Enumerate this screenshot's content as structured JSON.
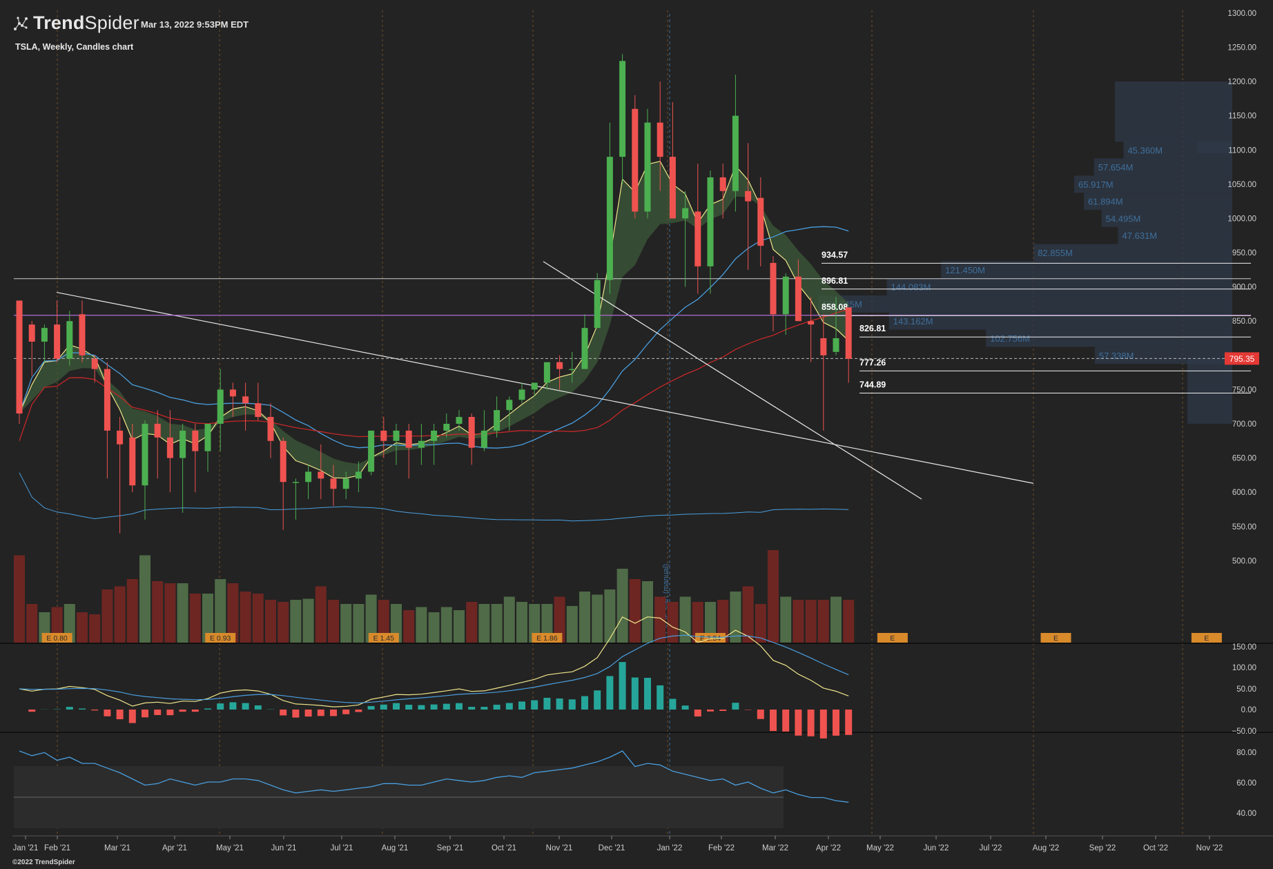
{
  "header": {
    "brand_prefix": "Trend",
    "brand_suffix": "Spider",
    "timestamp": "Mar 13, 2022 9:53PM EDT",
    "subtitle": "TSLA, Weekly, Candles chart",
    "copyright": "©2022 TrendSpider"
  },
  "colors": {
    "background": "#232323",
    "up": "#4caf50",
    "down": "#ef5350",
    "vol_up": "#4f6b47",
    "vol_down": "#6e2622",
    "ema_fast": "#f0e68c",
    "sma_blue": "#4a9fe0",
    "sma_red": "#c62828",
    "purple_line": "#b36bd4",
    "price_tag": "#e53935",
    "macd_pos": "#26a69a",
    "macd_neg": "#ef5350",
    "earnings": "#d98a2b"
  },
  "chart_data": {
    "type": "candlestick",
    "symbol": "TSLA",
    "interval": "Weekly",
    "last_price_label": "795.35",
    "x_labels": [
      "Jan '21",
      "Feb '21",
      "Mar '21",
      "Apr '21",
      "May '21",
      "Jun '21",
      "Jul '21",
      "Aug '21",
      "Sep '21",
      "Oct '21",
      "Nov '21",
      "Dec '21",
      "Jan '22",
      "Feb '22",
      "Mar '22",
      "Apr '22",
      "May '22",
      "Jun '22",
      "Jul '22",
      "Aug '22",
      "Sep '22",
      "Oct '22",
      "Nov '22"
    ],
    "y_ticks": [
      "1300.00",
      "1250.00",
      "1200.00",
      "1150.00",
      "1100.00",
      "1050.00",
      "1000.00",
      "950.00",
      "900.00",
      "850.00",
      "800.00",
      "750.00",
      "700.00",
      "650.00",
      "600.00",
      "550.00",
      "500.00"
    ],
    "ylim": [
      500,
      1300
    ],
    "candles": [
      [
        880,
        880,
        700,
        715
      ],
      [
        845,
        850,
        770,
        820
      ],
      [
        820,
        845,
        790,
        840
      ],
      [
        845,
        880,
        790,
        795
      ],
      [
        795,
        865,
        785,
        850
      ],
      [
        860,
        880,
        790,
        800
      ],
      [
        795,
        800,
        760,
        780
      ],
      [
        780,
        790,
        620,
        690
      ],
      [
        690,
        710,
        540,
        670
      ],
      [
        680,
        700,
        600,
        610
      ],
      [
        610,
        705,
        560,
        700
      ],
      [
        700,
        720,
        620,
        680
      ],
      [
        680,
        720,
        600,
        650
      ],
      [
        650,
        700,
        570,
        690
      ],
      [
        690,
        700,
        600,
        660
      ],
      [
        660,
        700,
        630,
        700
      ],
      [
        700,
        780,
        660,
        750
      ],
      [
        750,
        760,
        710,
        740
      ],
      [
        740,
        760,
        690,
        730
      ],
      [
        730,
        760,
        705,
        710
      ],
      [
        710,
        730,
        650,
        675
      ],
      [
        675,
        680,
        545,
        615
      ],
      [
        615,
        620,
        560,
        615
      ],
      [
        615,
        640,
        590,
        630
      ],
      [
        630,
        670,
        590,
        620
      ],
      [
        620,
        640,
        580,
        605
      ],
      [
        605,
        630,
        590,
        620
      ],
      [
        620,
        645,
        600,
        630
      ],
      [
        630,
        690,
        625,
        690
      ],
      [
        690,
        710,
        650,
        675
      ],
      [
        675,
        700,
        640,
        690
      ],
      [
        690,
        700,
        620,
        665
      ],
      [
        665,
        700,
        640,
        675
      ],
      [
        675,
        700,
        640,
        690
      ],
      [
        690,
        715,
        680,
        700
      ],
      [
        700,
        720,
        690,
        710
      ],
      [
        710,
        715,
        640,
        665
      ],
      [
        665,
        720,
        660,
        690
      ],
      [
        690,
        740,
        680,
        720
      ],
      [
        720,
        740,
        690,
        735
      ],
      [
        735,
        760,
        730,
        750
      ],
      [
        750,
        760,
        740,
        760
      ],
      [
        760,
        790,
        750,
        790
      ],
      [
        790,
        800,
        750,
        780
      ],
      [
        780,
        805,
        760,
        780
      ],
      [
        780,
        860,
        780,
        840
      ],
      [
        840,
        920,
        840,
        910
      ],
      [
        910,
        1140,
        890,
        1090
      ],
      [
        1090,
        1240,
        1050,
        1230
      ],
      [
        1160,
        1180,
        1000,
        1010
      ],
      [
        1010,
        1160,
        1000,
        1140
      ],
      [
        1140,
        1200,
        1040,
        1090
      ],
      [
        1090,
        1170,
        1000,
        1000
      ],
      [
        1000,
        1040,
        900,
        1015
      ],
      [
        1010,
        1080,
        890,
        930
      ],
      [
        930,
        1070,
        890,
        1060
      ],
      [
        1060,
        1080,
        1000,
        1040
      ],
      [
        1040,
        1210,
        1010,
        1150
      ],
      [
        1040,
        1110,
        925,
        1025
      ],
      [
        1030,
        1060,
        930,
        960
      ],
      [
        935,
        945,
        835,
        860
      ],
      [
        860,
        920,
        830,
        915
      ],
      [
        915,
        940,
        850,
        850
      ],
      [
        850,
        885,
        790,
        845
      ],
      [
        825,
        860,
        690,
        800
      ],
      [
        805,
        885,
        800,
        825
      ],
      [
        870,
        870,
        760,
        795
      ]
    ],
    "volume": [
      85,
      38,
      30,
      35,
      38,
      30,
      28,
      52,
      55,
      62,
      85,
      60,
      58,
      58,
      48,
      48,
      62,
      58,
      50,
      48,
      42,
      40,
      42,
      43,
      55,
      42,
      38,
      38,
      47,
      42,
      38,
      32,
      35,
      30,
      35,
      32,
      40,
      38,
      38,
      45,
      40,
      38,
      38,
      45,
      36,
      50,
      47,
      52,
      72,
      62,
      60,
      45,
      40,
      45,
      40,
      40,
      42,
      50,
      55,
      38,
      90,
      45,
      42,
      42,
      42,
      45,
      42
    ],
    "earnings": [
      {
        "label": "E 0.80",
        "week": 3
      },
      {
        "label": "E 0.93",
        "week": 16
      },
      {
        "label": "E 1.45",
        "week": 29
      },
      {
        "label": "E 1.86",
        "week": 42
      },
      {
        "label": "E 2.54",
        "week": 55
      },
      {
        "label": "E",
        "week": 69.5
      },
      {
        "label": "E",
        "week": 82.5
      },
      {
        "label": "E",
        "week": 94.5
      }
    ],
    "horizontal_levels": [
      {
        "value": "934.57",
        "price": 934.57
      },
      {
        "value": "896.81",
        "price": 896.81
      },
      {
        "value": "858.08",
        "price": 858.08
      },
      {
        "value": "826.81",
        "price": 826.81
      },
      {
        "value": "777.26",
        "price": 777.26
      },
      {
        "value": "744.89",
        "price": 744.89
      }
    ],
    "volume_profile": [
      {
        "price": 1100,
        "label": "45.360M"
      },
      {
        "price": 1075,
        "label": "57.654M"
      },
      {
        "price": 1050,
        "label": "65.917M"
      },
      {
        "price": 1025,
        "label": "61.894M"
      },
      {
        "price": 1000,
        "label": "54.495M"
      },
      {
        "price": 975,
        "label": "47.631M"
      },
      {
        "price": 950,
        "label": "82.855M"
      },
      {
        "price": 925,
        "label": "121.450M"
      },
      {
        "price": 900,
        "label": "144.083M"
      },
      {
        "price": 875,
        "label": "172.745M"
      },
      {
        "price": 850,
        "label": "143.162M"
      },
      {
        "price": 825,
        "label": "102.756M"
      },
      {
        "price": 800,
        "label": "57.338M"
      }
    ],
    "volume_profile_values": [
      45.36,
      57.654,
      65.917,
      61.894,
      54.495,
      47.631,
      82.855,
      121.45,
      144.083,
      172.745,
      143.162,
      102.756,
      57.338
    ],
    "vwap_label": "1 VOP start (manual)",
    "macd_ticks": [
      "150.00",
      "100.00",
      "50.00",
      "0.00",
      "−50.00"
    ],
    "rsi_ticks": [
      "80.00",
      "60.00",
      "40.00"
    ]
  }
}
